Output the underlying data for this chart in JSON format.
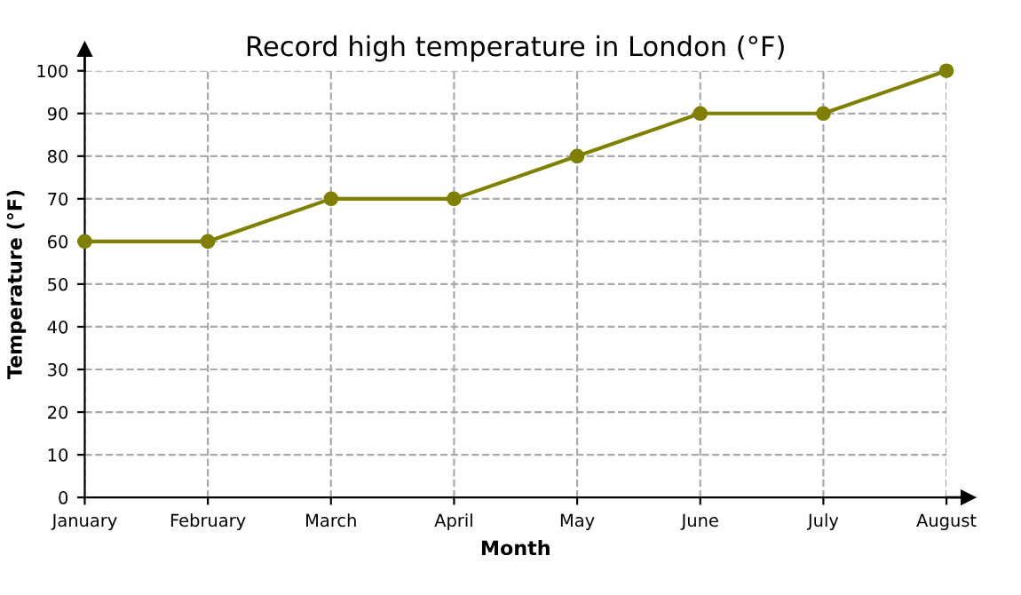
{
  "chart_data": {
    "type": "line",
    "title": "Record high temperature in London (°F)",
    "xlabel": "Month",
    "ylabel": "Temperature (°F)",
    "categories": [
      "January",
      "February",
      "March",
      "April",
      "May",
      "June",
      "July",
      "August"
    ],
    "series": [
      {
        "color": "#808000",
        "values": [
          60,
          60,
          70,
          70,
          80,
          90,
          90,
          100
        ]
      }
    ],
    "ylim": [
      0,
      100
    ],
    "yticks": [
      0,
      10,
      20,
      30,
      40,
      50,
      60,
      70,
      80,
      90,
      100
    ],
    "grid": true,
    "marker": "circle",
    "line_style": "solid"
  }
}
